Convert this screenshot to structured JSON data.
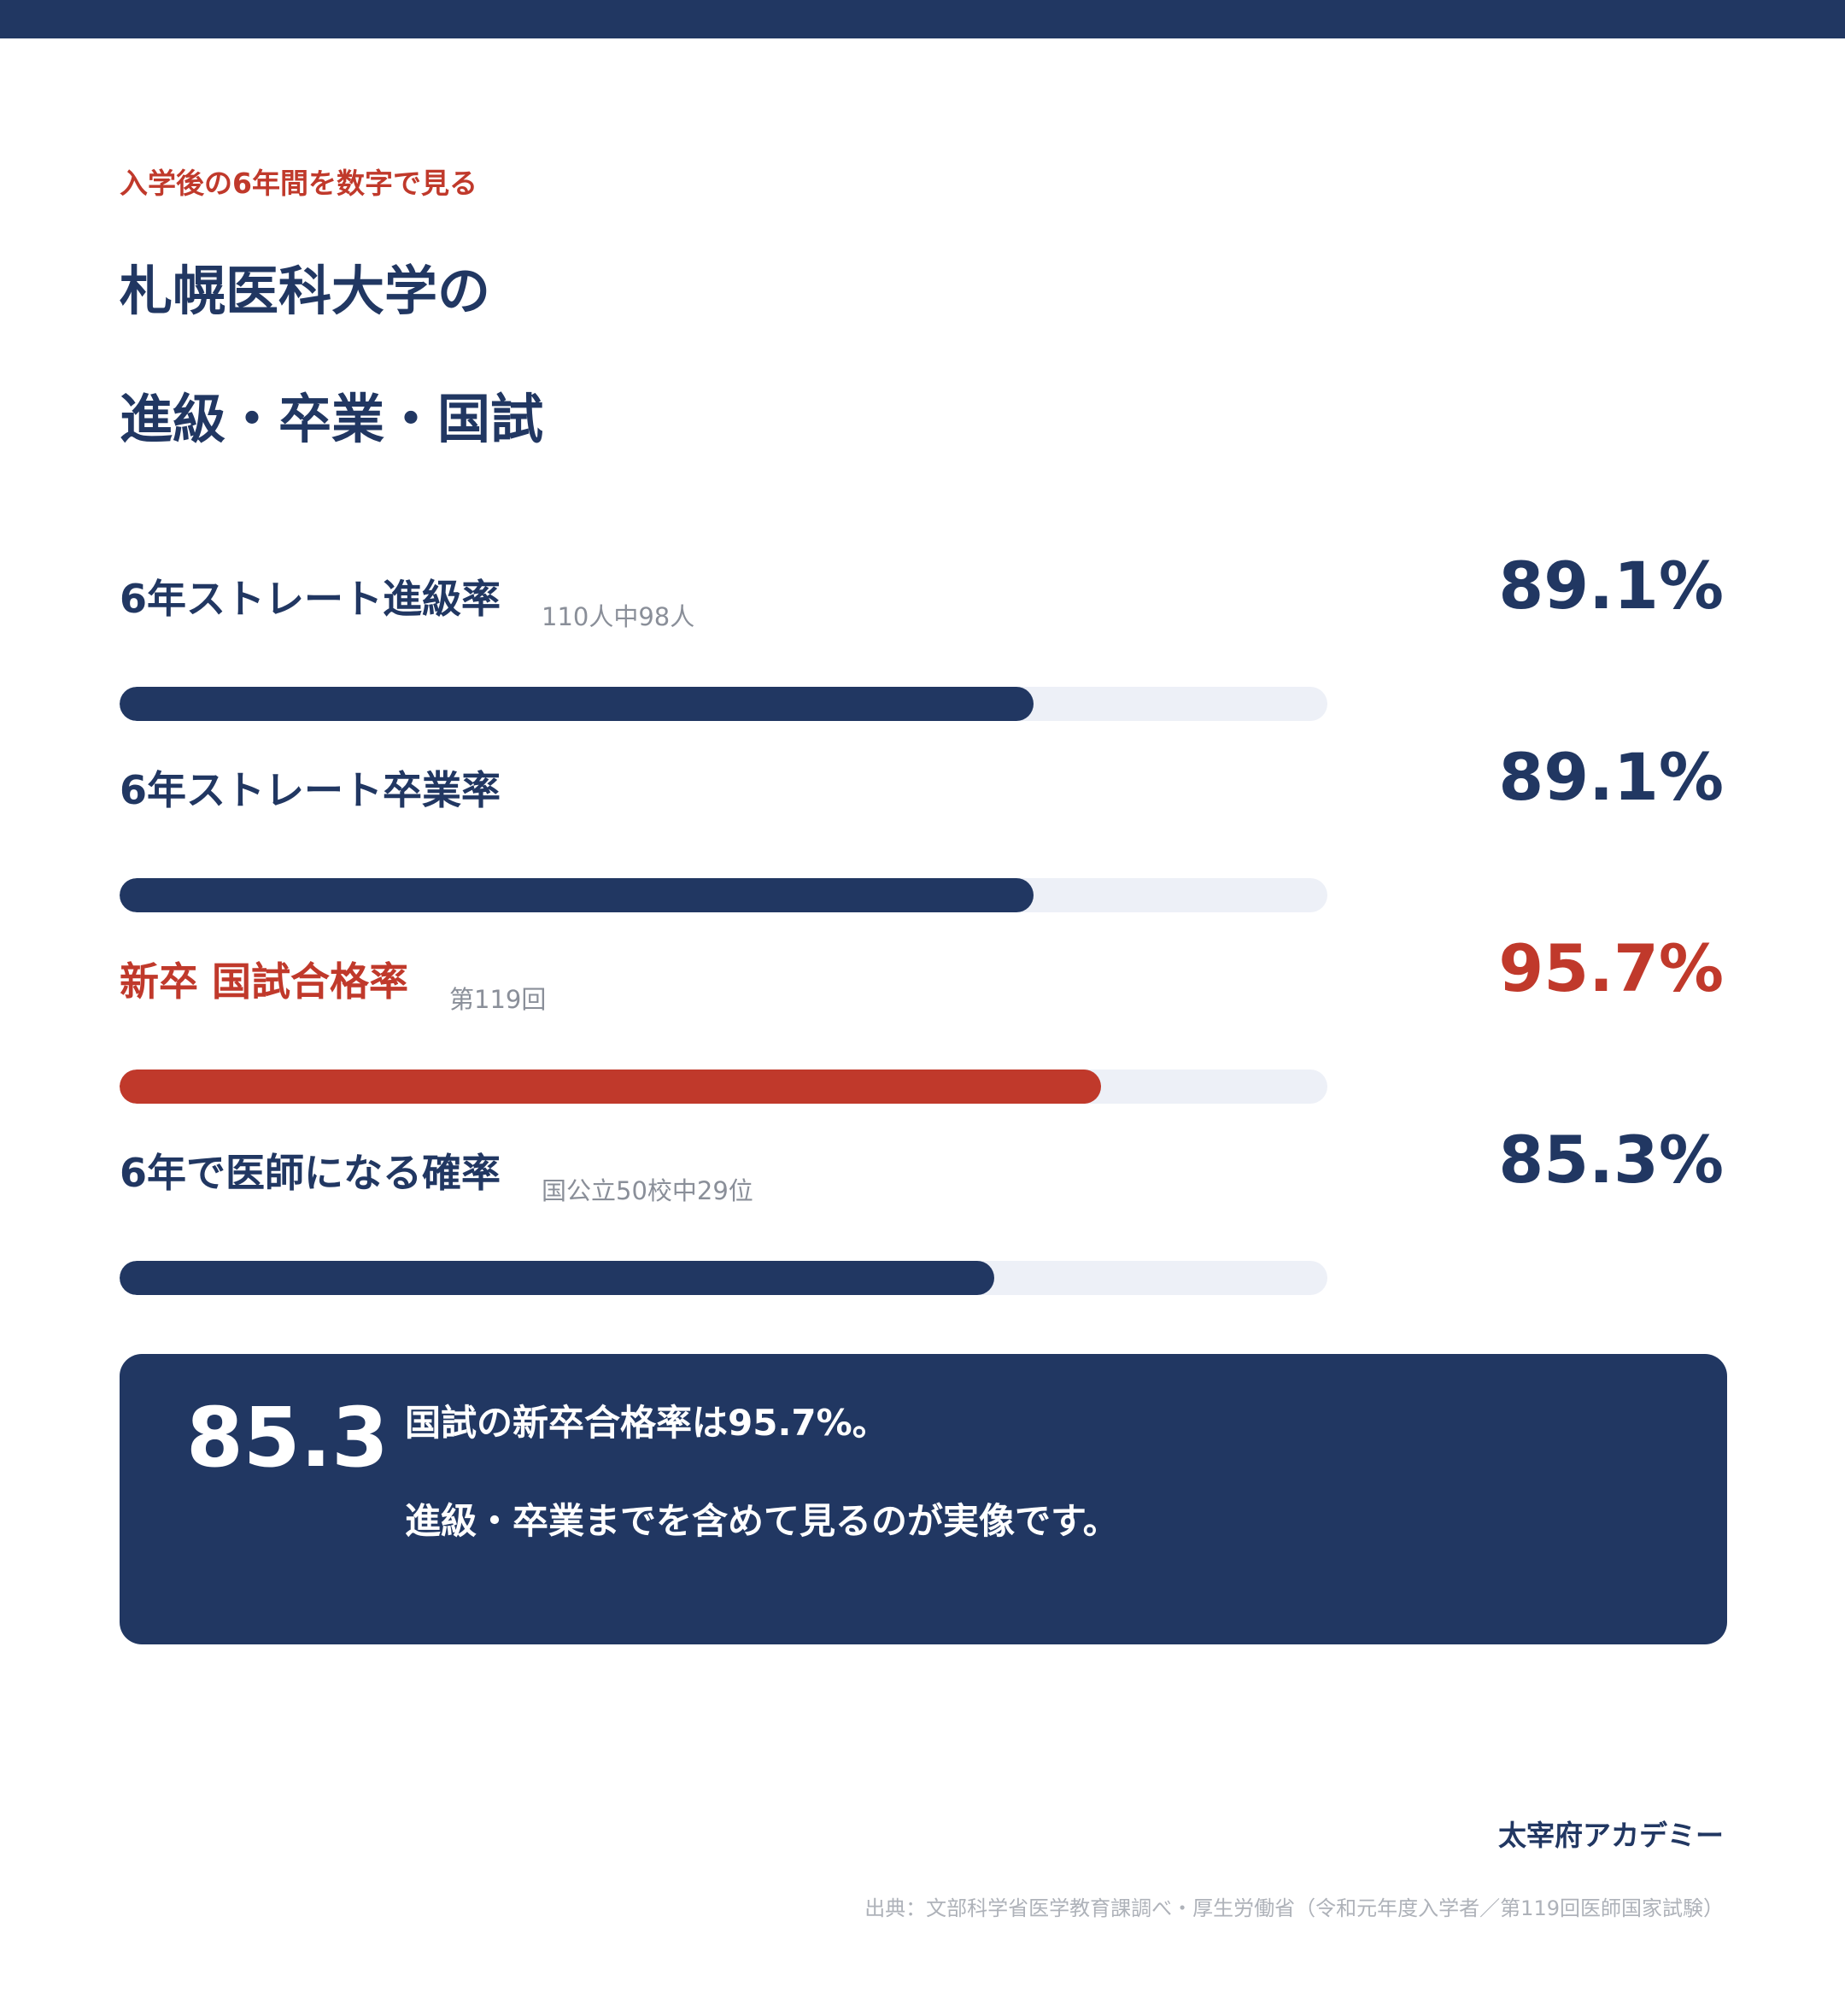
{
  "header": {
    "eyebrow": "入学後の6年間を数字で見る",
    "title_line1": "札幌医科大学の",
    "title_line2": "進級・卒業・国試"
  },
  "chart_data": {
    "type": "bar",
    "orientation": "horizontal",
    "xlim": [
      0,
      100
    ],
    "series": [
      {
        "categories": [
          "6年ストレート進級率",
          "6年ストレート卒業率",
          "新卒 国試合格率",
          "6年で医師になる確率"
        ],
        "values": [
          89.1,
          89.1,
          95.7,
          85.3
        ],
        "value_labels": [
          "89.1%",
          "89.1%",
          "95.7%",
          "85.3%"
        ],
        "notes": [
          "110人中98人",
          "",
          "第119回",
          "国公立50校中29位"
        ]
      }
    ],
    "colors": [
      "#213762",
      "#213762",
      "#c0392b",
      "#213762"
    ],
    "track_color": "#edf0f7"
  },
  "callout": {
    "number": "85.3",
    "line1": "国試の新卒合格率は95.7%。",
    "line2": "進級・卒業までを含めて見るのが実像です。"
  },
  "footer": {
    "brand": "太宰府アカデミー",
    "source": "出典：文部科学省医学教育課調べ・厚生労働省（令和元年度入学者／第119回医師国家試験）"
  },
  "colors": {
    "navy": "#213762",
    "red": "#c0392b",
    "track": "#edf0f7"
  }
}
